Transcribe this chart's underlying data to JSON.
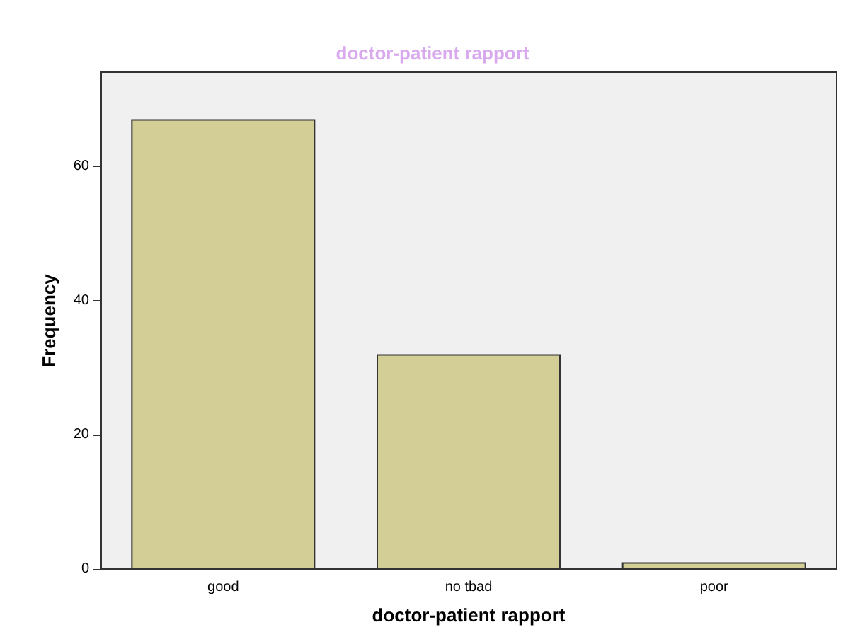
{
  "chart_data": {
    "type": "bar",
    "title": "doctor-patient rapport",
    "xlabel": "doctor-patient rapport",
    "ylabel": "Frequency",
    "categories": [
      "good",
      "no tbad",
      "poor"
    ],
    "values": [
      67,
      32,
      1
    ],
    "color": "#d3cd96",
    "ylim": [
      0,
      74
    ],
    "yticks": [
      0,
      20,
      40,
      60
    ],
    "grid": false
  }
}
